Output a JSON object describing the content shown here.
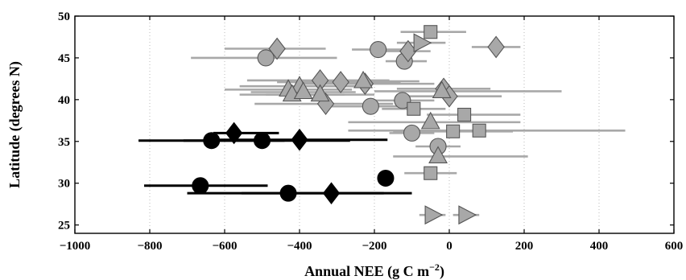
{
  "chart_data": {
    "type": "scatter",
    "title": "",
    "xlabel": "Annual NEE (g C m",
    "xlabel_sup": "−2",
    "xlabel_close": ")",
    "ylabel": "Latitude (degrees N)",
    "xlim": [
      -1000,
      600
    ],
    "ylim": [
      24,
      50
    ],
    "xticks": [
      -1000,
      -800,
      -600,
      -400,
      -200,
      0,
      200,
      400,
      600
    ],
    "yticks": [
      25,
      30,
      35,
      40,
      45,
      50
    ],
    "grid": "vertical-dotted",
    "legend": "none",
    "colors": {
      "gray": "#a8a8a8",
      "gray_edge": "#555555",
      "black": "#000000",
      "grid": "#b8b8b8"
    },
    "series": [
      {
        "color": "gray",
        "points": [
          {
            "shape": "circle",
            "x": -490,
            "y": 45.0,
            "xmin": -690,
            "xmax": -300
          },
          {
            "shape": "circle",
            "x": -190,
            "y": 46.0,
            "xmin": -260,
            "xmax": -120
          },
          {
            "shape": "circle",
            "x": -120,
            "y": 44.6,
            "xmin": -170,
            "xmax": -60
          },
          {
            "shape": "circle",
            "x": -210,
            "y": 39.2,
            "xmin": -330,
            "xmax": -90
          },
          {
            "shape": "circle",
            "x": -125,
            "y": 39.9,
            "xmin": -220,
            "xmax": -40
          },
          {
            "shape": "circle",
            "x": -100,
            "y": 36.0,
            "xmin": -160,
            "xmax": -40
          },
          {
            "shape": "circle",
            "x": -30,
            "y": 34.4,
            "xmin": -90,
            "xmax": 30
          },
          {
            "shape": "diamond",
            "x": -460,
            "y": 46.1,
            "xmin": -600,
            "xmax": -330
          },
          {
            "shape": "diamond",
            "x": -110,
            "y": 45.8,
            "xmin": -180,
            "xmax": -50
          },
          {
            "shape": "diamond",
            "x": 125,
            "y": 46.3,
            "xmin": 60,
            "xmax": 190
          },
          {
            "shape": "diamond",
            "x": -345,
            "y": 42.3,
            "xmin": -540,
            "xmax": -160
          },
          {
            "shape": "diamond",
            "x": -290,
            "y": 42.1,
            "xmin": -460,
            "xmax": -130
          },
          {
            "shape": "diamond",
            "x": -225,
            "y": 41.9,
            "xmin": -400,
            "xmax": -40
          },
          {
            "shape": "diamond",
            "x": -330,
            "y": 39.5,
            "xmin": -520,
            "xmax": -150
          },
          {
            "shape": "diamond",
            "x": -15,
            "y": 41.3,
            "xmin": -140,
            "xmax": 110
          },
          {
            "shape": "diamond",
            "x": 0,
            "y": 40.4,
            "xmin": -140,
            "xmax": 140
          },
          {
            "shape": "triangle",
            "x": -430,
            "y": 41.2,
            "xmin": -600,
            "xmax": -260
          },
          {
            "shape": "triangle",
            "x": -400,
            "y": 41.6,
            "xmin": -560,
            "xmax": -230
          },
          {
            "shape": "triangle",
            "x": -420,
            "y": 40.6,
            "xmin": -560,
            "xmax": -280
          },
          {
            "shape": "triangle",
            "x": -390,
            "y": 40.9,
            "xmin": -530,
            "xmax": -250
          },
          {
            "shape": "triangle",
            "x": -345,
            "y": 40.6,
            "xmin": -490,
            "xmax": -200
          },
          {
            "shape": "triangle",
            "x": -230,
            "y": 42.2,
            "xmin": -380,
            "xmax": -80
          },
          {
            "shape": "triangle",
            "x": -50,
            "y": 37.3,
            "xmin": -270,
            "xmax": 190
          },
          {
            "shape": "triangle",
            "x": -30,
            "y": 33.2,
            "xmin": -150,
            "xmax": 210
          },
          {
            "shape": "triangle",
            "x": -20,
            "y": 41.0,
            "xmin": -200,
            "xmax": 300
          },
          {
            "shape": "right-triangle",
            "x": -75,
            "y": 46.8,
            "xmin": -140,
            "xmax": -10
          },
          {
            "shape": "right-triangle",
            "x": -45,
            "y": 26.2,
            "xmin": -80,
            "xmax": -10
          },
          {
            "shape": "right-triangle",
            "x": 45,
            "y": 26.2,
            "xmin": 10,
            "xmax": 80
          },
          {
            "shape": "square",
            "x": -50,
            "y": 48.1,
            "xmin": -130,
            "xmax": 45
          },
          {
            "shape": "square",
            "x": -95,
            "y": 38.9,
            "xmin": -180,
            "xmax": -10
          },
          {
            "shape": "square",
            "x": 40,
            "y": 38.2,
            "xmin": -60,
            "xmax": 190
          },
          {
            "shape": "square",
            "x": 10,
            "y": 36.2,
            "xmin": -150,
            "xmax": 170
          },
          {
            "shape": "square",
            "x": 80,
            "y": 36.3,
            "xmin": -270,
            "xmax": 470
          },
          {
            "shape": "square",
            "x": -50,
            "y": 31.2,
            "xmin": -120,
            "xmax": 20
          }
        ]
      },
      {
        "color": "black",
        "points": [
          {
            "shape": "circle",
            "x": -635,
            "y": 35.1,
            "xmin": -830,
            "xmax": -440
          },
          {
            "shape": "circle",
            "x": -500,
            "y": 35.1,
            "xmin": -710,
            "xmax": -265
          },
          {
            "shape": "circle",
            "x": -665,
            "y": 29.7,
            "xmin": -815,
            "xmax": -485
          },
          {
            "shape": "circle",
            "x": -430,
            "y": 28.8,
            "xmin": -700,
            "xmax": -175
          },
          {
            "shape": "circle",
            "x": -170,
            "y": 30.6,
            "xmin": -170,
            "xmax": -170
          },
          {
            "shape": "diamond",
            "x": -575,
            "y": 36.0,
            "xmin": -630,
            "xmax": -455
          },
          {
            "shape": "diamond",
            "x": -400,
            "y": 35.2,
            "xmin": -640,
            "xmax": -165
          },
          {
            "shape": "diamond",
            "x": -315,
            "y": 28.8,
            "xmin": -555,
            "xmax": -100
          }
        ]
      }
    ]
  }
}
